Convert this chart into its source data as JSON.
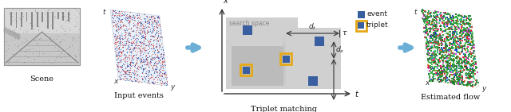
{
  "fig_width": 6.4,
  "fig_height": 1.41,
  "dpi": 100,
  "bg_color": "#ffffff",
  "labels": {
    "scene": "Scene",
    "input_events": "Input events",
    "triplet_matching": "Triplet matching",
    "estimated_flow": "Estimated flow",
    "search_space": "search space",
    "event": "event",
    "triplet": "triplet",
    "d_t": "$d_t$",
    "d_x": "$d_x$",
    "tau": "$\\tau$",
    "x_label": "$x$",
    "t_label": "$t$",
    "y_label": "$y$"
  },
  "colors": {
    "arrow_blue": "#6baed6",
    "event_blue": "#3a5fa0",
    "triplet_yellow": "#e6a817",
    "search_space_light": "#cccccc",
    "search_space_dark": "#aaaaaa",
    "bg": "#ffffff",
    "text_dark": "#222222",
    "gray_light": "#d8d8d8",
    "gray_mid": "#b8b8b8"
  }
}
